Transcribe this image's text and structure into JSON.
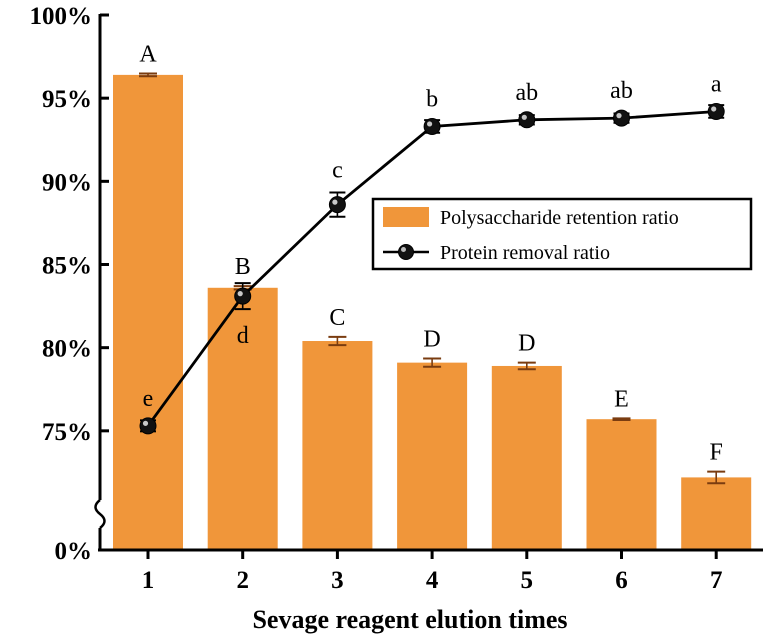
{
  "chart_data": {
    "type": "bar",
    "xlabel": "Sevage reagent elution times",
    "ylabel": "",
    "categories": [
      "1",
      "2",
      "3",
      "4",
      "5",
      "6",
      "7"
    ],
    "y_axis": {
      "broken": true,
      "ticks": [
        "0%",
        "75%",
        "80%",
        "85%",
        "90%",
        "95%",
        "100%"
      ],
      "tick_values": [
        0,
        75,
        80,
        85,
        90,
        95,
        100
      ],
      "upper_range": [
        70,
        100
      ]
    },
    "series": [
      {
        "name": "Polysaccharide retention ratio",
        "kind": "bar",
        "color": "#F0963A",
        "values": [
          96.4,
          83.6,
          80.4,
          79.1,
          78.9,
          75.7,
          72.2
        ],
        "errors": [
          0.08,
          0.1,
          0.25,
          0.25,
          0.2,
          0.05,
          0.35
        ],
        "significance": [
          "A",
          "B",
          "C",
          "D",
          "D",
          "E",
          "F"
        ]
      },
      {
        "name": "Protein removal ratio",
        "kind": "line",
        "color": "#000000",
        "values": [
          75.3,
          83.1,
          88.6,
          93.3,
          93.7,
          93.8,
          94.2
        ],
        "errors": [
          0.15,
          0.6,
          0.55,
          0.2,
          0.1,
          0.1,
          0.2
        ],
        "significance": [
          "e",
          "d",
          "c",
          "b",
          "ab",
          "ab",
          "a"
        ]
      }
    ],
    "legend_position": "right-middle"
  }
}
